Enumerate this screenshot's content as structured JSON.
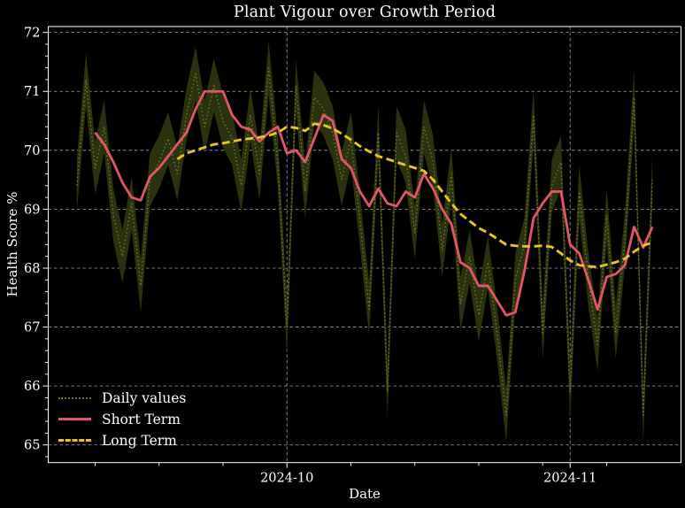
{
  "colors": {
    "background": "#000000",
    "text": "#ffffff",
    "grid": "#bbbbbb",
    "spine": "#ffffff"
  },
  "chart_data": {
    "type": "line",
    "title": "Plant Vigour over Growth Period",
    "xlabel": "Date",
    "ylabel": "Health Score %",
    "grid": true,
    "ylim": [
      64.7,
      72.1
    ],
    "xlim": [
      -3.13,
      66.14
    ],
    "yticks": [
      65,
      66,
      67,
      68,
      69,
      70,
      71,
      72
    ],
    "y_minor_step": 0.2,
    "xticks": [
      {
        "index": 23,
        "label": "2024-10"
      },
      {
        "index": 54,
        "label": "2024-11"
      }
    ],
    "x_minor_tick_indices": [
      2,
      9,
      16,
      30,
      37,
      44,
      51,
      58
    ],
    "x": [
      "2024-09-08",
      "2024-09-09",
      "2024-09-10",
      "2024-09-11",
      "2024-09-12",
      "2024-09-13",
      "2024-09-14",
      "2024-09-15",
      "2024-09-16",
      "2024-09-17",
      "2024-09-18",
      "2024-09-19",
      "2024-09-20",
      "2024-09-21",
      "2024-09-22",
      "2024-09-23",
      "2024-09-24",
      "2024-09-25",
      "2024-09-26",
      "2024-09-27",
      "2024-09-28",
      "2024-09-29",
      "2024-09-30",
      "2024-10-01",
      "2024-10-02",
      "2024-10-03",
      "2024-10-04",
      "2024-10-05",
      "2024-10-06",
      "2024-10-07",
      "2024-10-08",
      "2024-10-09",
      "2024-10-10",
      "2024-10-11",
      "2024-10-12",
      "2024-10-13",
      "2024-10-14",
      "2024-10-15",
      "2024-10-16",
      "2024-10-17",
      "2024-10-18",
      "2024-10-19",
      "2024-10-20",
      "2024-10-21",
      "2024-10-22",
      "2024-10-23",
      "2024-10-24",
      "2024-10-25",
      "2024-10-26",
      "2024-10-27",
      "2024-10-28",
      "2024-10-29",
      "2024-10-30",
      "2024-10-31",
      "2024-11-01",
      "2024-11-02",
      "2024-11-03",
      "2024-11-04",
      "2024-11-05",
      "2024-11-06",
      "2024-11-07",
      "2024-11-08",
      "2024-11-09",
      "2024-11-10"
    ],
    "series": [
      {
        "name": "Daily values",
        "style": "dotted",
        "color": "#6e7e2b",
        "band_halfwidth": 0.45,
        "band_color": "#2b320f",
        "values": [
          69.4,
          71.2,
          69.7,
          70.4,
          68.9,
          68.2,
          69.1,
          67.7,
          69.5,
          69.8,
          70.2,
          69.6,
          70.6,
          71.3,
          70.4,
          71.1,
          70.5,
          70.2,
          69.4,
          70.6,
          69.6,
          71.4,
          69.8,
          67.0,
          71.1,
          69.3,
          70.9,
          70.7,
          70.3,
          69.5,
          70.2,
          68.8,
          67.3,
          70.3,
          65.9,
          70.3,
          69.9,
          68.6,
          70.4,
          69.8,
          68.3,
          69.6,
          67.4,
          68.2,
          67.2,
          68.1,
          66.9,
          65.5,
          67.8,
          68.4,
          70.6,
          66.9,
          69.4,
          69.8,
          65.9,
          69.3,
          67.8,
          66.7,
          68.9,
          66.9,
          68.5,
          70.9,
          65.5,
          69.5
        ]
      },
      {
        "name": "Short Term",
        "style": "solid",
        "color": "#e25768",
        "values": [
          null,
          null,
          70.3,
          70.1,
          69.8,
          69.45,
          69.2,
          69.15,
          69.55,
          69.7,
          69.9,
          70.1,
          70.3,
          70.7,
          71.0,
          71.0,
          71.0,
          70.6,
          70.4,
          70.35,
          70.15,
          70.3,
          70.4,
          69.95,
          70.0,
          69.8,
          70.2,
          70.6,
          70.5,
          69.85,
          69.7,
          69.3,
          69.05,
          69.35,
          69.1,
          69.05,
          69.3,
          69.2,
          69.6,
          69.35,
          69.0,
          68.75,
          68.1,
          68.0,
          67.7,
          67.7,
          67.45,
          67.2,
          67.25,
          67.95,
          68.85,
          69.1,
          69.3,
          69.3,
          68.4,
          68.25,
          67.8,
          67.3,
          67.85,
          67.9,
          68.05,
          68.7,
          68.35,
          68.7
        ]
      },
      {
        "name": "Long Term",
        "style": "dashed",
        "color": "#e6c51d",
        "values": [
          null,
          null,
          null,
          null,
          null,
          null,
          null,
          null,
          null,
          null,
          null,
          69.85,
          69.95,
          70.0,
          70.05,
          70.1,
          70.12,
          70.15,
          70.18,
          70.2,
          70.22,
          70.25,
          70.3,
          70.4,
          70.38,
          70.33,
          70.45,
          70.43,
          70.37,
          70.28,
          70.18,
          70.07,
          69.98,
          69.9,
          69.85,
          69.8,
          69.75,
          69.7,
          69.65,
          69.5,
          69.3,
          69.1,
          68.92,
          68.8,
          68.68,
          68.6,
          68.5,
          68.4,
          68.38,
          68.37,
          68.37,
          68.38,
          68.36,
          68.25,
          68.13,
          68.05,
          68.03,
          68.02,
          68.06,
          68.1,
          68.16,
          68.28,
          68.38,
          68.44
        ]
      }
    ],
    "legend": {
      "position": "lower left",
      "items": [
        {
          "label": "Daily values",
          "style": "dotted",
          "color": "#6e7e2b"
        },
        {
          "label": "Short Term",
          "style": "solid",
          "color": "#e25768"
        },
        {
          "label": "Long Term",
          "style": "dashed",
          "color": "#e6c51d"
        }
      ]
    }
  }
}
